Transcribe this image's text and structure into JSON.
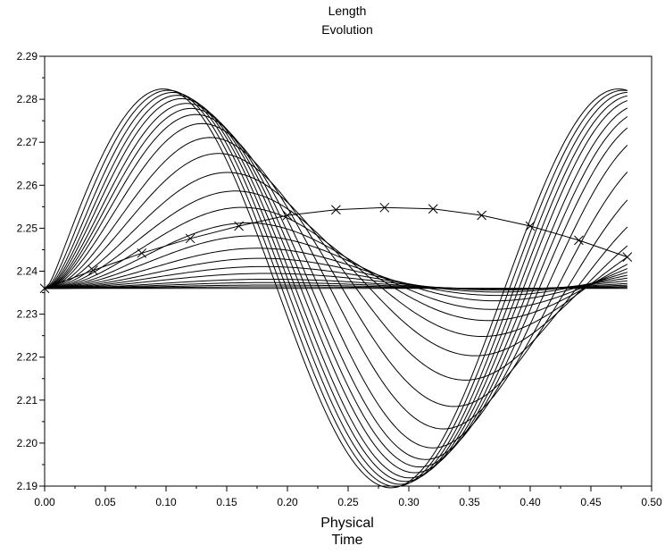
{
  "chart_data": {
    "type": "line",
    "title_lines": [
      "Length",
      "Evolution"
    ],
    "xlabel_lines": [
      "Physical",
      "Time"
    ],
    "ylabel": "",
    "xlim": [
      0.0,
      0.5
    ],
    "ylim": [
      2.19,
      2.29
    ],
    "grid": false,
    "legend": false,
    "x_ticks": [
      "0.00",
      "0.05",
      "0.10",
      "0.15",
      "0.20",
      "0.25",
      "0.30",
      "0.35",
      "0.40",
      "0.45",
      "0.50"
    ],
    "y_ticks": [
      "2.19",
      "2.20",
      "2.21",
      "2.22",
      "2.23",
      "2.24",
      "2.25",
      "2.26",
      "2.27",
      "2.28",
      "2.29"
    ],
    "model": {
      "x_max": 0.48,
      "base": 2.236,
      "amplitude": 0.0465,
      "period": 0.375,
      "taus": [
        0.004,
        0.008,
        0.012,
        0.016,
        0.02,
        0.025,
        0.03,
        0.036,
        0.045,
        0.06,
        0.08,
        0.11,
        0.15,
        0.2,
        0.27,
        0.36,
        0.5,
        0.7,
        1.0,
        1.5,
        2.5,
        4,
        7,
        15
      ],
      "lag": 0.14
    },
    "marked_series": {
      "name": "",
      "x": [
        0.0,
        0.04,
        0.08,
        0.12,
        0.16,
        0.2,
        0.24,
        0.28,
        0.32,
        0.36,
        0.4,
        0.44,
        0.48
      ],
      "y": [
        2.236,
        2.2402,
        2.2442,
        2.2476,
        2.2505,
        2.253,
        2.2543,
        2.2548,
        2.2545,
        2.253,
        2.2505,
        2.2472,
        2.2433
      ]
    },
    "flat_series": {
      "x": [
        0.0,
        0.48
      ],
      "y": [
        2.236,
        2.236
      ]
    }
  }
}
